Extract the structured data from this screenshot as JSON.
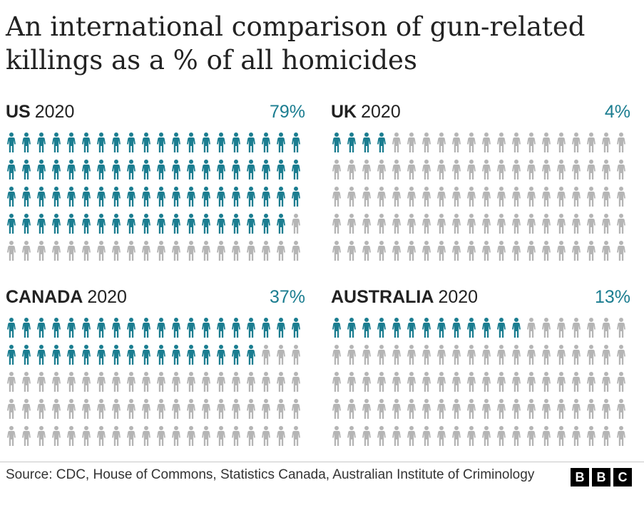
{
  "title": "An international comparison of gun-related killings as a % of all homicides",
  "colors": {
    "filled": "#1b7d90",
    "empty": "#b5b5b5",
    "accent": "#1b7d90"
  },
  "chart_data": {
    "type": "waffle",
    "icon": "person-icon",
    "per_panel": {
      "rows": 5,
      "cols": 20,
      "total": 100
    },
    "panels": [
      {
        "country": "US",
        "year": "2020",
        "value": 79,
        "label": "79%"
      },
      {
        "country": "UK",
        "year": "2020",
        "value": 4,
        "label": "4%"
      },
      {
        "country": "CANADA",
        "year": "2020",
        "value": 37,
        "label": "37%"
      },
      {
        "country": "AUSTRALIA",
        "year": "2020",
        "value": 13,
        "label": "13%"
      }
    ]
  },
  "source": "Source: CDC, House of Commons, Statistics Canada, Australian Institute of Criminology",
  "logo": {
    "letters": [
      "B",
      "B",
      "C"
    ]
  }
}
